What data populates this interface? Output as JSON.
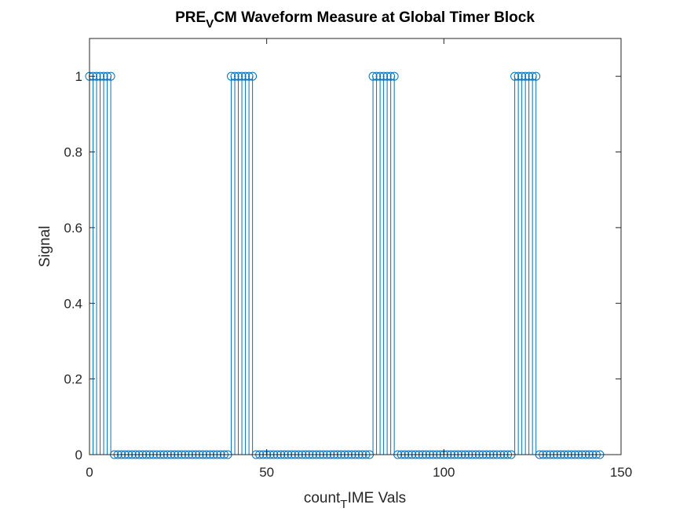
{
  "chart_data": {
    "type": "stem",
    "title": {
      "parts": [
        {
          "text": "PRE",
          "sub": false
        },
        {
          "text": "V",
          "sub": true
        },
        {
          "text": "CM Waveform Measure at Global Timer Block",
          "sub": false
        }
      ]
    },
    "xlabel": {
      "parts": [
        {
          "text": "count",
          "sub": false
        },
        {
          "text": "T",
          "sub": true
        },
        {
          "text": "IME Vals",
          "sub": false
        }
      ]
    },
    "ylabel": "Signal",
    "xlim": [
      0,
      150
    ],
    "ylim": [
      0,
      1.1
    ],
    "xticks": [
      0,
      50,
      100,
      150
    ],
    "yticks": [
      0,
      0.2,
      0.4,
      0.6,
      0.8,
      1
    ],
    "xtick_labels": [
      "0",
      "50",
      "100",
      "150"
    ],
    "ytick_labels": [
      "0",
      "0.2",
      "0.4",
      "0.6",
      "0.8",
      "1"
    ],
    "grid": false,
    "series": [
      {
        "color": "#0072BD",
        "marker": "open-circle",
        "x": [
          0,
          1,
          2,
          3,
          4,
          5,
          6,
          7,
          8,
          9,
          10,
          11,
          12,
          13,
          14,
          15,
          16,
          17,
          18,
          19,
          20,
          21,
          22,
          23,
          24,
          25,
          26,
          27,
          28,
          29,
          30,
          31,
          32,
          33,
          34,
          35,
          36,
          37,
          38,
          39,
          40,
          41,
          42,
          43,
          44,
          45,
          46,
          47,
          48,
          49,
          50,
          51,
          52,
          53,
          54,
          55,
          56,
          57,
          58,
          59,
          60,
          61,
          62,
          63,
          64,
          65,
          66,
          67,
          68,
          69,
          70,
          71,
          72,
          73,
          74,
          75,
          76,
          77,
          78,
          79,
          80,
          81,
          82,
          83,
          84,
          85,
          86,
          87,
          88,
          89,
          90,
          91,
          92,
          93,
          94,
          95,
          96,
          97,
          98,
          99,
          100,
          101,
          102,
          103,
          104,
          105,
          106,
          107,
          108,
          109,
          110,
          111,
          112,
          113,
          114,
          115,
          116,
          117,
          118,
          119,
          120,
          121,
          122,
          123,
          124,
          125,
          126,
          127,
          128,
          129,
          130,
          131,
          132,
          133,
          134,
          135,
          136,
          137,
          138,
          139,
          140,
          141,
          142,
          143,
          144
        ],
        "y": [
          1,
          1,
          1,
          1,
          1,
          1,
          1,
          0,
          0,
          0,
          0,
          0,
          0,
          0,
          0,
          0,
          0,
          0,
          0,
          0,
          0,
          0,
          0,
          0,
          0,
          0,
          0,
          0,
          0,
          0,
          0,
          0,
          0,
          0,
          0,
          0,
          0,
          0,
          0,
          0,
          1,
          1,
          1,
          1,
          1,
          1,
          1,
          0,
          0,
          0,
          0,
          0,
          0,
          0,
          0,
          0,
          0,
          0,
          0,
          0,
          0,
          0,
          0,
          0,
          0,
          0,
          0,
          0,
          0,
          0,
          0,
          0,
          0,
          0,
          0,
          0,
          0,
          0,
          0,
          0,
          1,
          1,
          1,
          1,
          1,
          1,
          1,
          0,
          0,
          0,
          0,
          0,
          0,
          0,
          0,
          0,
          0,
          0,
          0,
          0,
          0,
          0,
          0,
          0,
          0,
          0,
          0,
          0,
          0,
          0,
          0,
          0,
          0,
          0,
          0,
          0,
          0,
          0,
          0,
          0,
          1,
          1,
          1,
          1,
          1,
          1,
          1,
          0,
          0,
          0,
          0,
          0,
          0,
          0,
          0,
          0,
          0,
          0,
          0,
          0,
          0,
          0,
          0,
          0,
          0
        ]
      }
    ]
  }
}
